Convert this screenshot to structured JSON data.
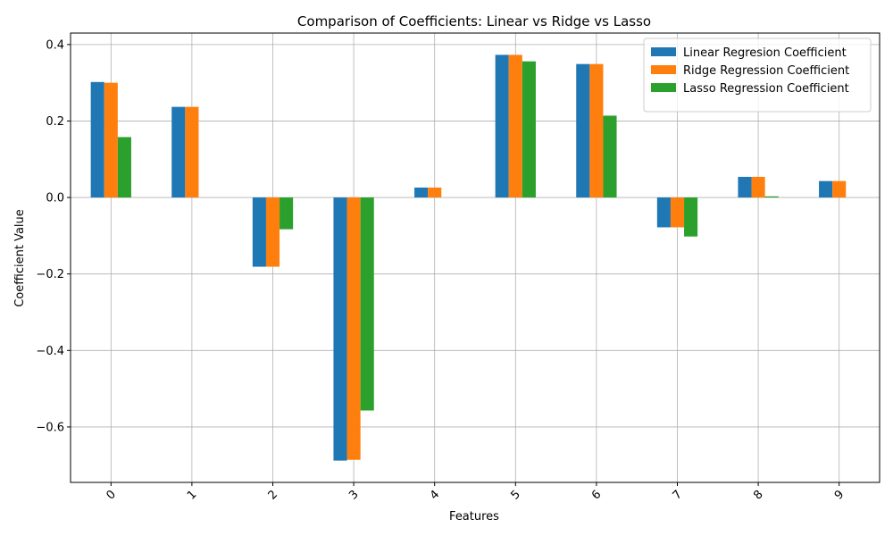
{
  "chart_data": {
    "type": "bar",
    "title": "Comparison of Coefficients: Linear vs Ridge vs Lasso",
    "xlabel": "Features",
    "ylabel": "Coefficient Value",
    "categories": [
      "0",
      "1",
      "2",
      "3",
      "4",
      "5",
      "6",
      "7",
      "8",
      "9"
    ],
    "ylim": [
      -0.745,
      0.43
    ],
    "yticks": [
      -0.6,
      -0.4,
      -0.2,
      0.0,
      0.2,
      0.4
    ],
    "ytick_labels": [
      "−0.6",
      "−0.4",
      "−0.2",
      "0.0",
      "0.2",
      "0.4"
    ],
    "xtick_rotation": 45,
    "grid": true,
    "legend_position": "top-right",
    "series": [
      {
        "name": "Linear Regresion Coefficient",
        "color": "#1f77b4",
        "values": [
          0.302,
          0.237,
          -0.181,
          -0.688,
          0.026,
          0.373,
          0.349,
          -0.078,
          0.054,
          0.043
        ]
      },
      {
        "name": "Ridge Regression Coefficient",
        "color": "#ff7f0e",
        "values": [
          0.3,
          0.237,
          -0.181,
          -0.686,
          0.026,
          0.373,
          0.349,
          -0.078,
          0.054,
          0.043
        ]
      },
      {
        "name": "Lasso Regression Coefficient",
        "color": "#2ca02c",
        "values": [
          0.158,
          0.0,
          -0.083,
          -0.557,
          0.0,
          0.356,
          0.214,
          -0.102,
          0.003,
          0.0
        ]
      }
    ]
  }
}
